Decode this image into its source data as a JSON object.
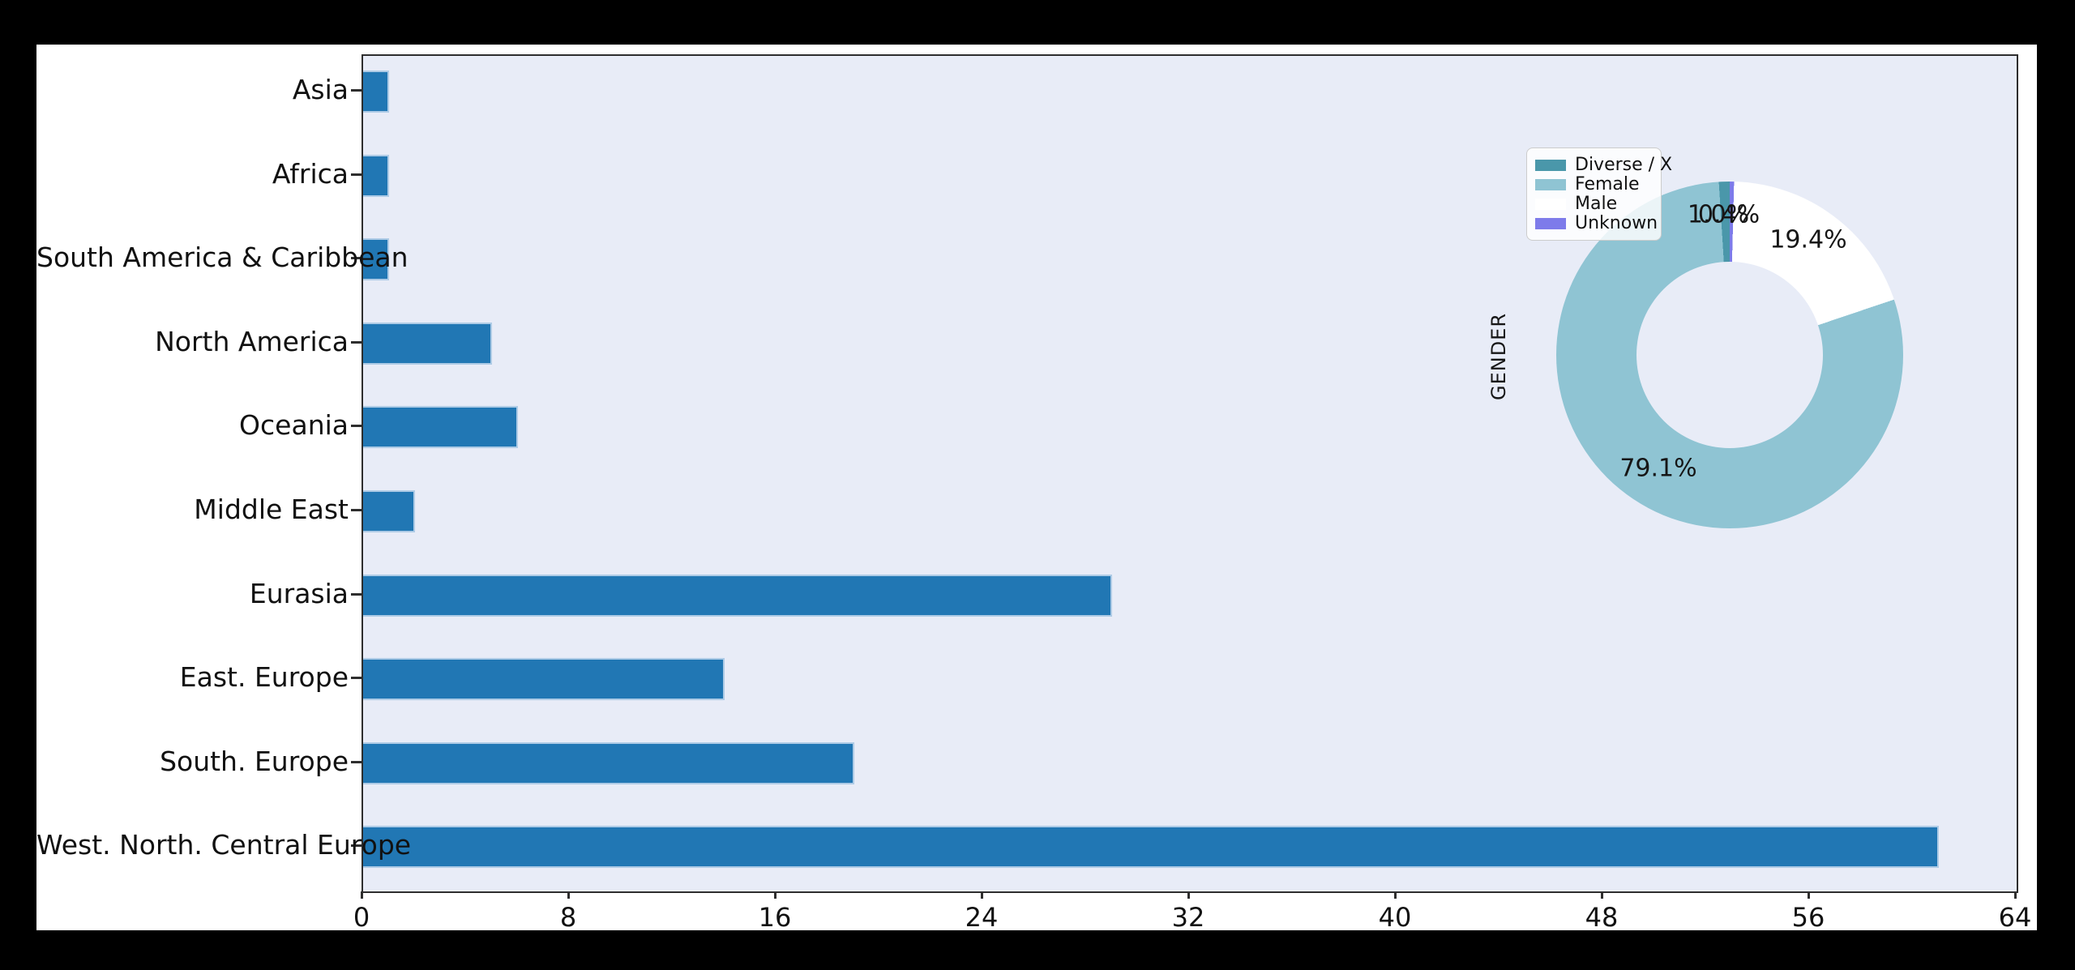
{
  "page": {
    "background_color": "#000000",
    "figure_background_color": "#ffffff"
  },
  "chart_data": [
    {
      "type": "bar",
      "orientation": "horizontal",
      "title": "",
      "xlabel": "",
      "ylabel": "",
      "categories": [
        "Asia",
        "Africa",
        "South America & Caribbean",
        "North America",
        "Oceania",
        "Middle East",
        "Eurasia",
        "East. Europe",
        "South. Europe",
        "West. North. Central Europe"
      ],
      "values": [
        1,
        1,
        1,
        5,
        6,
        2,
        29,
        14,
        19,
        61
      ],
      "xlim": [
        0,
        64
      ],
      "xticks": [
        0,
        8,
        16,
        24,
        32,
        40,
        48,
        56,
        64
      ],
      "grid": false,
      "legend": "none",
      "bar_color": "#2177b4",
      "bar_edge_color": "#aecbe6",
      "plot_background": "#e8ecf7",
      "spine_color": "#2e2e2e"
    },
    {
      "type": "pie",
      "donut": true,
      "axis_label": "GENDER",
      "start_angle": 90,
      "counterclockwise": true,
      "slices": [
        {
          "label": "Diverse / X",
          "pct": 1.0,
          "pct_label": "1.0%",
          "color": "#4a97aa"
        },
        {
          "label": "Female",
          "pct": 79.1,
          "pct_label": "79.1%",
          "color": "#8fc4d3"
        },
        {
          "label": "Male",
          "pct": 19.4,
          "pct_label": "19.4%",
          "color": "#ffffff"
        },
        {
          "label": "Unknown",
          "pct": 0.4,
          "pct_label": "0.4%",
          "color": "#7d7bea"
        }
      ],
      "legend": {
        "position": "upper left",
        "items": [
          "Diverse / X",
          "Female",
          "Male",
          "Unknown"
        ]
      },
      "hole_color": "#e8ecf7"
    }
  ]
}
